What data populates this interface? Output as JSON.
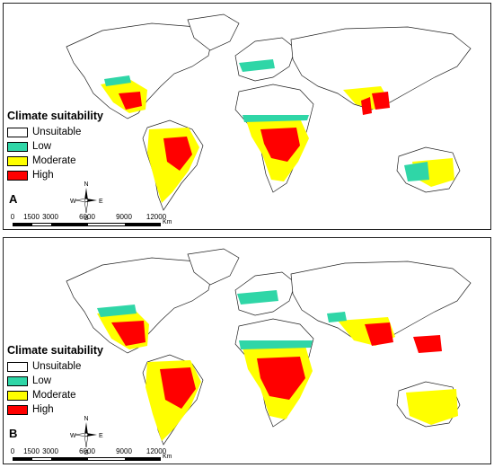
{
  "colors": {
    "unsuitable": "#ffffff",
    "low": "#2fd6a7",
    "moderate": "#ffff00",
    "high": "#ff0000",
    "outline": "#222222"
  },
  "legend": {
    "title": "Climate suitability",
    "items": [
      {
        "label": "Unsuitable",
        "color": "#ffffff"
      },
      {
        "label": "Low",
        "color": "#2fd6a7"
      },
      {
        "label": "Moderate",
        "color": "#ffff00"
      },
      {
        "label": "High",
        "color": "#ff0000"
      }
    ]
  },
  "panels": [
    {
      "letter": "A"
    },
    {
      "letter": "B"
    }
  ],
  "scale": {
    "ticks": [
      "0",
      "1500",
      "3000",
      "6000",
      "9000",
      "12000"
    ],
    "unit": "Km"
  },
  "compass": {
    "north": "N",
    "south": "S",
    "east": "E",
    "west": "W"
  }
}
